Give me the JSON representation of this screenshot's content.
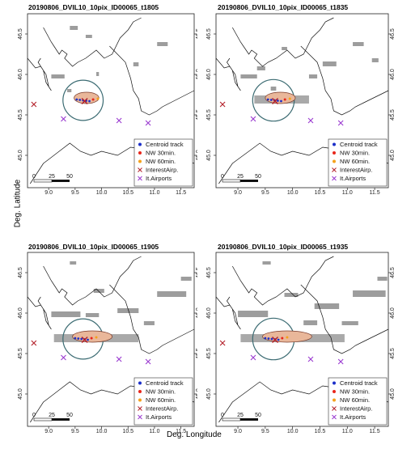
{
  "axis_labels": {
    "y": "Deg. Latitude",
    "x": "Deg. Longitude"
  },
  "chart_data": [
    {
      "type": "map",
      "title": "20190806_DVIL10_10pix_ID00065_t1805",
      "xlim": [
        8.6,
        11.75
      ],
      "ylim": [
        44.6,
        46.75
      ],
      "x_ticks": [
        "9.0",
        "9.5",
        "10.0",
        "10.5",
        "11.0",
        "11.5"
      ],
      "y_ticks": [
        "45.0",
        "45.5",
        "46.0",
        "46.5"
      ],
      "scalebar_labels": [
        "0",
        "25",
        "50"
      ],
      "legend": [
        "Centroid track",
        "NW 30min.",
        "NW 60min.",
        "InterestAirp.",
        "It.Airports"
      ],
      "circle_center": [
        9.65,
        45.68
      ],
      "circle_radius_deg": 0.38,
      "cell_lon_range": [
        9.48,
        9.95
      ]
    },
    {
      "type": "map",
      "title": "20190806_DVIL10_10pix_ID00065_t1835",
      "xlim": [
        8.6,
        11.75
      ],
      "ylim": [
        44.6,
        46.75
      ],
      "x_ticks": [
        "9.0",
        "9.5",
        "10.0",
        "10.5",
        "11.0",
        "11.5"
      ],
      "y_ticks": [
        "45.0",
        "45.5",
        "46.0",
        "46.5"
      ],
      "scalebar_labels": [
        "0",
        "25",
        "50"
      ],
      "legend": [
        "Centroid track",
        "NW 30min.",
        "NW 60min.",
        "InterestAirp.",
        "It.Airports"
      ],
      "circle_center": [
        9.65,
        45.68
      ],
      "circle_radius_deg": 0.38,
      "cell_lon_range": [
        9.5,
        10.05
      ]
    },
    {
      "type": "map",
      "title": "20190806_DVIL10_10pix_ID00065_t1905",
      "xlim": [
        8.6,
        11.75
      ],
      "ylim": [
        44.6,
        46.75
      ],
      "x_ticks": [
        "9.0",
        "9.5",
        "10.0",
        "10.5",
        "11.0",
        "11.5"
      ],
      "y_ticks": [
        "45.0",
        "45.5",
        "46.0",
        "46.5"
      ],
      "scalebar_labels": [
        "0",
        "25",
        "50"
      ],
      "legend": [
        "Centroid track",
        "NW 30min.",
        "NW 60min.",
        "InterestAirp.",
        "It.Airports"
      ],
      "circle_center": [
        9.65,
        45.68
      ],
      "circle_radius_deg": 0.38,
      "cell_lon_range": [
        9.45,
        10.2
      ]
    },
    {
      "type": "map",
      "title": "20190806_DVIL10_10pix_ID00065_t1935",
      "xlim": [
        8.6,
        11.75
      ],
      "ylim": [
        44.6,
        46.75
      ],
      "x_ticks": [
        "9.0",
        "9.5",
        "10.0",
        "10.5",
        "11.0",
        "11.5"
      ],
      "y_ticks": [
        "45.0",
        "45.5",
        "46.0",
        "46.5"
      ],
      "scalebar_labels": [
        "0",
        "25",
        "50"
      ],
      "legend": [
        "Centroid track",
        "NW 30min.",
        "NW 60min.",
        "InterestAirp.",
        "It.Airports"
      ],
      "circle_center": [
        9.65,
        45.68
      ],
      "circle_radius_deg": 0.38,
      "cell_lon_range": [
        9.45,
        10.35
      ]
    }
  ],
  "interest_airport": [
    9.68,
    45.67
  ],
  "it_airports": [
    [
      8.72,
      45.63
    ],
    [
      9.28,
      45.45
    ],
    [
      10.33,
      45.43
    ],
    [
      10.88,
      45.4
    ]
  ],
  "colors": {
    "centroid": "#1c2fc9",
    "nw30": "#e8261b",
    "nw60": "#f5a21b",
    "interest": "#b3202a",
    "airports": "#9a3ad0",
    "circle": "#3b6b72",
    "cell_fill": "#e9b79a",
    "cell_stroke": "#7a3a2a",
    "rain": "#8c8c8c"
  }
}
